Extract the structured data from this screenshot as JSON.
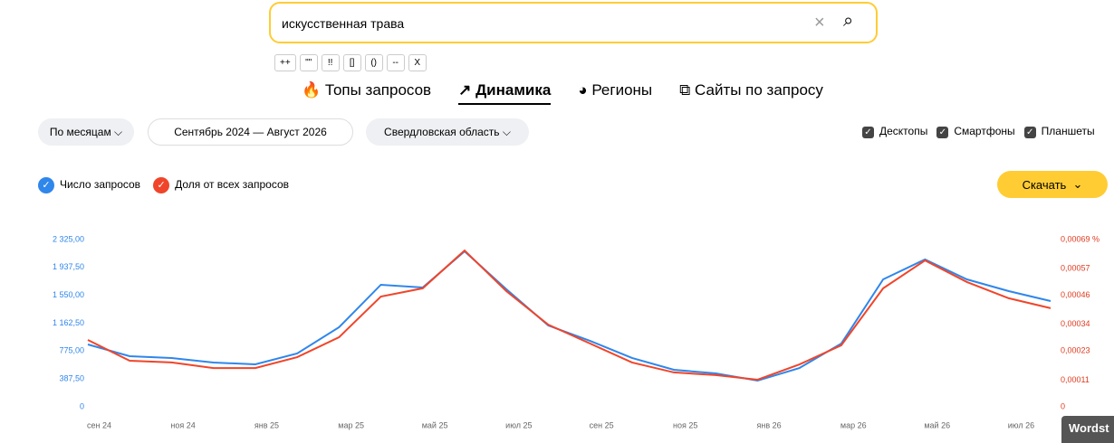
{
  "search": {
    "query": "искусственная трава",
    "operators": [
      "++",
      "\"\"",
      "!!",
      "[]",
      "()",
      "--",
      "X"
    ]
  },
  "tabs": [
    "Топы запросов",
    "Динамика",
    "Регионы",
    "Сайты по запросу"
  ],
  "filters": {
    "period": "По месяцам",
    "range": "Сентябрь 2024 — Август 2026",
    "region": "Свердловская область"
  },
  "devices": [
    "Десктопы",
    "Смартфоны",
    "Планшеты"
  ],
  "download": "Скачать",
  "corner": "Wordst",
  "chart_data": {
    "type": "line",
    "categories": [
      "сен 24",
      null,
      "ноя 24",
      null,
      "янв 25",
      null,
      "мар 25",
      null,
      "май 25",
      null,
      "июл 25",
      null,
      "сен 25",
      null,
      "ноя 25",
      null,
      "янв 26",
      null,
      "мар 26",
      null,
      "май 26",
      null,
      "июл 26",
      null
    ],
    "series": [
      {
        "name": "Число запросов",
        "color": "#2f86eb",
        "values": [
          867,
          704,
          679,
          616,
          591,
          742,
          1106,
          1697,
          1659,
          2162,
          1634,
          1131,
          917,
          679,
          515,
          465,
          364,
          540,
          880,
          1772,
          2049,
          1772,
          1609,
          1470
        ]
      },
      {
        "name": "Доля от всех запросов",
        "color": "#f0452a",
        "axis": "y2",
        "values": [
          0.000276,
          0.00019,
          0.000183,
          0.00016,
          0.00016,
          0.000205,
          0.000287,
          0.000455,
          0.000489,
          0.000645,
          0.000477,
          0.000339,
          0.000261,
          0.000183,
          0.000142,
          0.000131,
          0.000112,
          0.000175,
          0.000254,
          0.000489,
          0.000604,
          0.000515,
          0.000448,
          0.000407
        ]
      }
    ],
    "ylim": [
      0,
      2325
    ],
    "yticks": [
      0,
      {
        "value": 387.5,
        "label": "387,50"
      },
      {
        "value": 775,
        "label": "775,00"
      },
      {
        "value": 1162.5,
        "label": "1 162,50"
      },
      {
        "value": 1550,
        "label": "1 550,00"
      },
      {
        "value": 1937.5,
        "label": "1 937,50"
      },
      {
        "value": 2325,
        "label": "2 325,00"
      }
    ],
    "y2lim": [
      0,
      0.00069
    ],
    "y2ticks": [
      0,
      {
        "value": 0.00011,
        "label": "0,00011"
      },
      {
        "value": 0.00023,
        "label": "0,00023"
      },
      {
        "value": 0.00034,
        "label": "0,00034"
      },
      {
        "value": 0.00046,
        "label": "0,00046"
      },
      {
        "value": 0.00057,
        "label": "0,00057"
      },
      {
        "value": 0.00069,
        "label": "0,00069 %"
      }
    ]
  }
}
